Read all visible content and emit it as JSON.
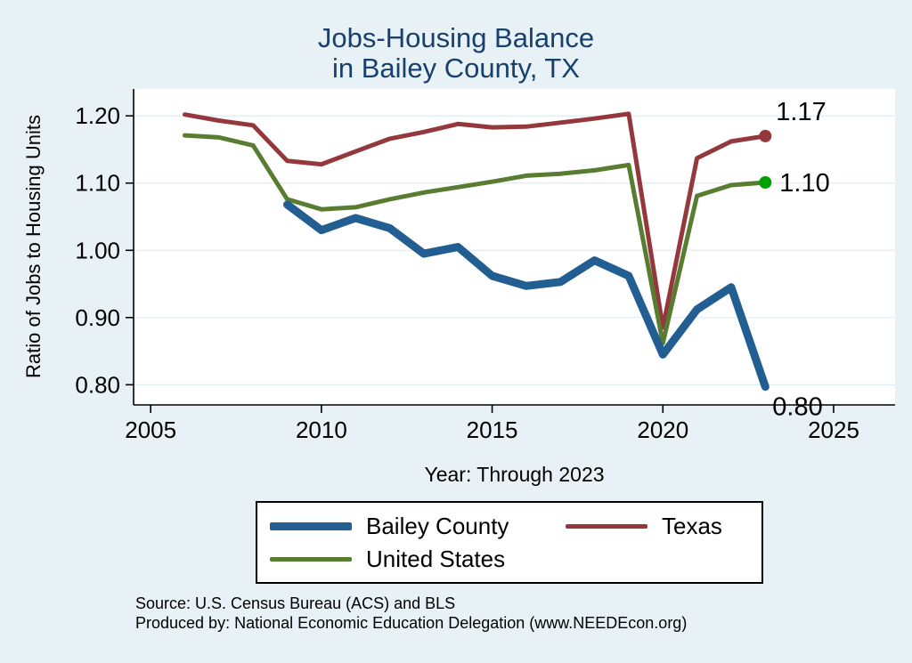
{
  "title": {
    "line1": "Jobs-Housing Balance",
    "line2": "in Bailey County, TX"
  },
  "colors": {
    "background": "#e8f2f6",
    "plot_bg": "#ffffff",
    "title": "#17406d",
    "grid": "#dfecf3",
    "axis": "#000000",
    "tick_label": "#000000"
  },
  "source": {
    "line1": "Source: U.S. Census Bureau (ACS) and BLS",
    "line2": "Produced by: National Economic Education Delegation (www.NEEDEcon.org)"
  },
  "chart_data": {
    "type": "line",
    "title": "Jobs-Housing Balance in Bailey County, TX",
    "xlabel": "Year: Through 2023",
    "ylabel": "Ratio of Jobs to Housing Units",
    "xlim": [
      2004.5,
      2026.8
    ],
    "ylim": [
      0.77,
      1.24
    ],
    "xticks": [
      "2005",
      "2010",
      "2015",
      "2020",
      "2025"
    ],
    "yticks": [
      "0.80",
      "0.90",
      "1.00",
      "1.10",
      "1.20"
    ],
    "grid": true,
    "legend_position": "bottom",
    "series": [
      {
        "name": "Bailey County",
        "color": "#235e93",
        "width": 9,
        "dot": false,
        "end_label": "0.80",
        "x": [
          2009,
          2010,
          2011,
          2012,
          2013,
          2014,
          2015,
          2016,
          2017,
          2018,
          2019,
          2020,
          2021,
          2022,
          2023
        ],
        "y": [
          1.068,
          1.03,
          1.048,
          1.033,
          0.995,
          1.005,
          0.962,
          0.947,
          0.953,
          0.985,
          0.962,
          0.845,
          0.912,
          0.945,
          0.797
        ]
      },
      {
        "name": "Texas",
        "color": "#94383d",
        "width": 5,
        "dot": true,
        "dot_color": "#94383d",
        "end_label": "1.17",
        "x": [
          2006,
          2007,
          2008,
          2009,
          2010,
          2011,
          2012,
          2013,
          2014,
          2015,
          2016,
          2017,
          2018,
          2019,
          2020,
          2021,
          2022,
          2023
        ],
        "y": [
          1.202,
          1.193,
          1.186,
          1.133,
          1.128,
          1.147,
          1.166,
          1.176,
          1.188,
          1.183,
          1.184,
          1.19,
          1.196,
          1.203,
          0.885,
          1.137,
          1.162,
          1.17
        ]
      },
      {
        "name": "United States",
        "color": "#587c30",
        "width": 5,
        "dot": true,
        "dot_color": "#00a000",
        "end_label": "1.10",
        "x": [
          2006,
          2007,
          2008,
          2009,
          2010,
          2011,
          2012,
          2013,
          2014,
          2015,
          2016,
          2017,
          2018,
          2019,
          2020,
          2021,
          2022,
          2023
        ],
        "y": [
          1.171,
          1.168,
          1.156,
          1.076,
          1.061,
          1.064,
          1.076,
          1.086,
          1.094,
          1.102,
          1.111,
          1.114,
          1.119,
          1.127,
          0.862,
          1.081,
          1.097,
          1.101
        ]
      }
    ]
  }
}
